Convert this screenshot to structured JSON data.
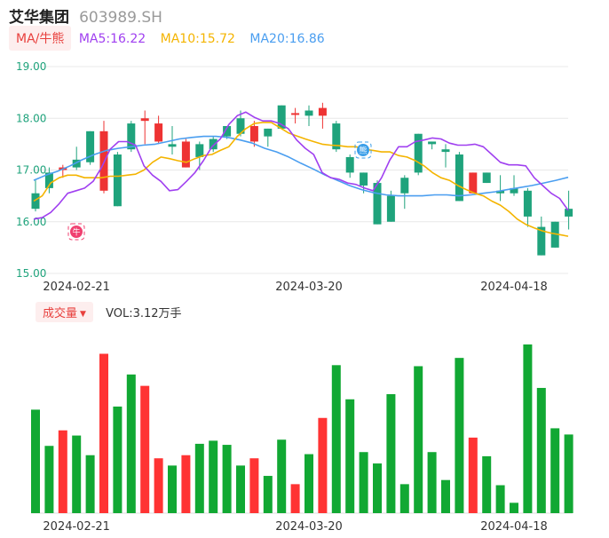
{
  "header": {
    "name": "艾华集团",
    "code": "603989.SH"
  },
  "legend": {
    "tag": "MA/牛熊",
    "ma5": "MA5:16.22",
    "ma10": "MA10:15.72",
    "ma20": "MA20:16.86"
  },
  "volume": {
    "tag": "成交量",
    "text": "VOL:3.12万手"
  },
  "markers": {
    "bull": "牛",
    "bear": "熊"
  },
  "colors": {
    "up": "#ee3333",
    "down": "#1fa37c",
    "vol_up": "#ff3333",
    "vol_down": "#11a833",
    "ma5": "#a040f0",
    "ma10": "#f4b400",
    "ma20": "#4a9ef0",
    "axis_label": "#1fa37c",
    "grid": "#e8e8e8"
  },
  "chart_data": {
    "type": "candlestick",
    "y_ticks": [
      "19.00",
      "18.00",
      "17.00",
      "16.00",
      "15.00"
    ],
    "ylim": [
      15.0,
      19.0
    ],
    "x_tick_labels": [
      {
        "index": 3,
        "label": "2024-02-21"
      },
      {
        "index": 20,
        "label": "2024-03-20"
      },
      {
        "index": 35,
        "label": "2024-04-18"
      }
    ],
    "candles": [
      {
        "o": 16.55,
        "c": 16.25,
        "h": 16.8,
        "l": 16.2,
        "v": 100
      },
      {
        "o": 16.95,
        "c": 16.65,
        "h": 17.05,
        "l": 16.55,
        "v": 65
      },
      {
        "o": 17.0,
        "c": 17.05,
        "h": 17.1,
        "l": 16.85,
        "v": 80
      },
      {
        "o": 17.2,
        "c": 17.05,
        "h": 17.45,
        "l": 17.0,
        "v": 75
      },
      {
        "o": 17.75,
        "c": 17.15,
        "h": 17.75,
        "l": 17.1,
        "v": 56
      },
      {
        "o": 16.6,
        "c": 17.75,
        "h": 17.95,
        "l": 16.55,
        "v": 154
      },
      {
        "o": 17.3,
        "c": 16.3,
        "h": 17.35,
        "l": 16.3,
        "v": 103
      },
      {
        "o": 17.9,
        "c": 17.4,
        "h": 17.95,
        "l": 17.35,
        "v": 134
      },
      {
        "o": 17.95,
        "c": 18.0,
        "h": 18.15,
        "l": 17.5,
        "v": 123
      },
      {
        "o": 17.55,
        "c": 17.9,
        "h": 18.05,
        "l": 17.5,
        "v": 53
      },
      {
        "o": 17.5,
        "c": 17.45,
        "h": 17.85,
        "l": 17.3,
        "v": 46
      },
      {
        "o": 17.05,
        "c": 17.55,
        "h": 17.6,
        "l": 17.05,
        "v": 56
      },
      {
        "o": 17.5,
        "c": 17.25,
        "h": 17.55,
        "l": 17.0,
        "v": 67
      },
      {
        "o": 17.6,
        "c": 17.4,
        "h": 17.65,
        "l": 17.35,
        "v": 70
      },
      {
        "o": 17.85,
        "c": 17.65,
        "h": 17.85,
        "l": 17.6,
        "v": 66
      },
      {
        "o": 18.0,
        "c": 17.7,
        "h": 18.15,
        "l": 17.65,
        "v": 46
      },
      {
        "o": 17.55,
        "c": 17.85,
        "h": 17.95,
        "l": 17.45,
        "v": 53
      },
      {
        "o": 17.8,
        "c": 17.65,
        "h": 17.8,
        "l": 17.45,
        "v": 36
      },
      {
        "o": 18.25,
        "c": 17.8,
        "h": 18.25,
        "l": 17.8,
        "v": 71
      },
      {
        "o": 18.1,
        "c": 18.1,
        "h": 18.2,
        "l": 17.9,
        "v": 28
      },
      {
        "o": 18.15,
        "c": 18.05,
        "h": 18.25,
        "l": 17.85,
        "v": 57
      },
      {
        "o": 18.05,
        "c": 18.2,
        "h": 18.3,
        "l": 17.8,
        "v": 92
      },
      {
        "o": 17.9,
        "c": 17.4,
        "h": 17.95,
        "l": 17.35,
        "v": 143
      },
      {
        "o": 17.25,
        "c": 16.95,
        "h": 17.3,
        "l": 16.85,
        "v": 110
      },
      {
        "o": 16.95,
        "c": 16.7,
        "h": 16.95,
        "l": 16.55,
        "v": 59
      },
      {
        "o": 16.75,
        "c": 15.95,
        "h": 16.8,
        "l": 15.95,
        "v": 48
      },
      {
        "o": 16.5,
        "c": 16.0,
        "h": 16.6,
        "l": 16.0,
        "v": 115
      },
      {
        "o": 16.85,
        "c": 16.55,
        "h": 16.9,
        "l": 16.25,
        "v": 28
      },
      {
        "o": 17.7,
        "c": 16.95,
        "h": 17.7,
        "l": 16.9,
        "v": 142
      },
      {
        "o": 17.55,
        "c": 17.5,
        "h": 17.55,
        "l": 17.4,
        "v": 59
      },
      {
        "o": 17.4,
        "c": 17.35,
        "h": 17.5,
        "l": 17.05,
        "v": 32
      },
      {
        "o": 17.3,
        "c": 16.4,
        "h": 17.35,
        "l": 16.4,
        "v": 150
      },
      {
        "o": 16.55,
        "c": 16.95,
        "h": 16.95,
        "l": 16.55,
        "v": 73
      },
      {
        "o": 16.95,
        "c": 16.75,
        "h": 16.95,
        "l": 16.75,
        "v": 55
      },
      {
        "o": 16.6,
        "c": 16.55,
        "h": 16.9,
        "l": 16.4,
        "v": 27
      },
      {
        "o": 16.65,
        "c": 16.55,
        "h": 16.9,
        "l": 16.5,
        "v": 10
      },
      {
        "o": 16.6,
        "c": 16.1,
        "h": 16.65,
        "l": 15.9,
        "v": 163
      },
      {
        "o": 15.9,
        "c": 15.35,
        "h": 16.1,
        "l": 15.35,
        "v": 121
      },
      {
        "o": 16.0,
        "c": 15.5,
        "h": 16.0,
        "l": 15.5,
        "v": 82
      },
      {
        "o": 16.25,
        "c": 16.1,
        "h": 16.6,
        "l": 15.85,
        "v": 76
      }
    ],
    "ma5": [
      16.05,
      16.08,
      16.18,
      16.35,
      16.55,
      16.6,
      16.65,
      16.78,
      17.05,
      17.4,
      17.55,
      17.55,
      17.48,
      17.08,
      16.9,
      16.78,
      16.6,
      16.62,
      16.78,
      16.95,
      17.18,
      17.45,
      17.6,
      17.88,
      18.05,
      18.12,
      18.02,
      17.95,
      17.95,
      17.9,
      17.8,
      17.58,
      17.42,
      17.3,
      16.95,
      16.85,
      16.82,
      16.75,
      16.72,
      16.65,
      16.6,
      16.85,
      17.2,
      17.45,
      17.45,
      17.55,
      17.58,
      17.62,
      17.6,
      17.52,
      17.48,
      17.48,
      17.5,
      17.45,
      17.3,
      17.15,
      17.1,
      17.1,
      17.08,
      16.85,
      16.7,
      16.55,
      16.45,
      16.22
    ],
    "ma10": [
      16.4,
      16.5,
      16.75,
      16.85,
      16.9,
      16.9,
      16.85,
      16.85,
      16.85,
      16.88,
      16.88,
      16.9,
      16.92,
      17.0,
      17.15,
      17.25,
      17.22,
      17.18,
      17.15,
      17.22,
      17.28,
      17.3,
      17.38,
      17.45,
      17.65,
      17.8,
      17.9,
      17.92,
      17.92,
      17.82,
      17.72,
      17.66,
      17.6,
      17.55,
      17.5,
      17.48,
      17.47,
      17.45,
      17.45,
      17.4,
      17.38,
      17.35,
      17.35,
      17.28,
      17.25,
      17.18,
      17.08,
      16.95,
      16.85,
      16.8,
      16.7,
      16.62,
      16.55,
      16.5,
      16.4,
      16.32,
      16.2,
      16.05,
      15.95,
      15.88,
      15.82,
      15.78,
      15.75,
      15.72
    ],
    "ma20": [
      16.8,
      16.9,
      16.98,
      17.08,
      17.2,
      17.3,
      17.38,
      17.42,
      17.45,
      17.48,
      17.5,
      17.55,
      17.6,
      17.63,
      17.65,
      17.65,
      17.63,
      17.58,
      17.52,
      17.42,
      17.35,
      17.25,
      17.13,
      17.02,
      16.9,
      16.8,
      16.7,
      16.62,
      16.56,
      16.52,
      16.5,
      16.5,
      16.5,
      16.52,
      16.52,
      16.5,
      16.52,
      16.55,
      16.58,
      16.62,
      16.66,
      16.7,
      16.75,
      16.8,
      16.86
    ]
  }
}
